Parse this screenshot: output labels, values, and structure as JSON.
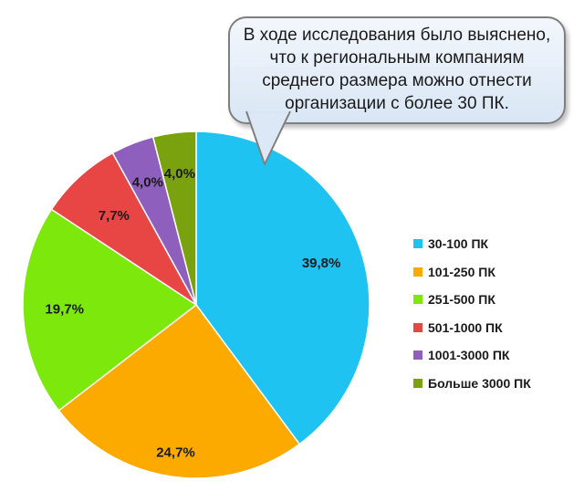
{
  "chart_data": {
    "type": "pie",
    "title": "",
    "categories": [
      "30-100 ПК",
      "101-250 ПК",
      "251-500 ПК",
      "501-1000 ПК",
      "1001-3000 ПК",
      "Больше 3000 ПК"
    ],
    "values": [
      39.8,
      24.7,
      19.7,
      7.7,
      4.0,
      4.0
    ],
    "data_labels": [
      "39,8%",
      "24,7%",
      "19,7%",
      "7,7%",
      "4,0%",
      "4,0%"
    ],
    "colors": [
      "#1ec3f2",
      "#fdaa00",
      "#7de80b",
      "#e84545",
      "#8e5fbd",
      "#7aa20f"
    ],
    "start_angle": "12 o'clock",
    "direction": "clockwise",
    "legend_position": "right",
    "annotation": {
      "lines": [
        "В ходе исследования было выяснено,",
        "что к региональным компаниям",
        "среднего размера можно отнести",
        "организации с более 30 ПК."
      ]
    }
  }
}
